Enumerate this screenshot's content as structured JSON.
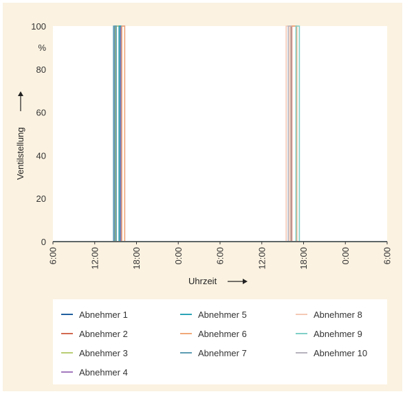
{
  "chart_data": {
    "type": "line",
    "title": "",
    "xlabel": "Uhrzeit",
    "ylabel": "Ventilstellung",
    "yunit": "%",
    "ylim": [
      0,
      100
    ],
    "yticks": [
      0,
      20,
      40,
      60,
      80,
      100
    ],
    "xlim": [
      6,
      54
    ],
    "xticks": [
      6,
      12,
      18,
      24,
      30,
      36,
      42,
      48,
      54
    ],
    "xtick_labels": [
      "6:00",
      "12:00",
      "18:00",
      "0:00",
      "6:00",
      "12:00",
      "18:00",
      "0:00",
      "6:00"
    ],
    "grid": false,
    "legend_position": "bottom",
    "series": [
      {
        "name": "Abnehmer 1",
        "color": "#1f5f9e",
        "x": [
          6,
          14.9,
          14.9,
          15.7,
          15.7,
          54
        ],
        "y": [
          0,
          0,
          100,
          100,
          0,
          0
        ]
      },
      {
        "name": "Abnehmer 2",
        "color": "#d2694f",
        "x": [
          6,
          40.3,
          40.3,
          41.0,
          41.0,
          54
        ],
        "y": [
          0,
          0,
          100,
          100,
          0,
          0
        ]
      },
      {
        "name": "Abnehmer 3",
        "color": "#b9cd73",
        "x": [
          6,
          15.0,
          15.0,
          15.5,
          15.5,
          54
        ],
        "y": [
          0,
          0,
          100,
          100,
          0,
          0
        ]
      },
      {
        "name": "Abnehmer 4",
        "color": "#a378bd",
        "x": [
          6,
          15.8,
          15.8,
          16.3,
          16.3,
          54
        ],
        "y": [
          0,
          0,
          100,
          100,
          0,
          0
        ]
      },
      {
        "name": "Abnehmer 5",
        "color": "#2ba3b6",
        "x": [
          6,
          15.5,
          15.5,
          15.9,
          15.9,
          54
        ],
        "y": [
          0,
          0,
          100,
          100,
          0,
          0
        ]
      },
      {
        "name": "Abnehmer 6",
        "color": "#f0a878",
        "x": [
          6,
          15.9,
          15.9,
          16.3,
          16.3,
          40.1,
          40.1,
          41.0,
          41.0,
          54
        ],
        "y": [
          0,
          0,
          100,
          100,
          0,
          0,
          100,
          100,
          0,
          0
        ]
      },
      {
        "name": "Abnehmer 7",
        "color": "#5b9bb3",
        "x": [
          6,
          14.7,
          14.7,
          15.1,
          15.1,
          54
        ],
        "y": [
          0,
          0,
          100,
          100,
          0,
          0
        ]
      },
      {
        "name": "Abnehmer 8",
        "color": "#f4c9b5",
        "x": [
          6,
          39.5,
          39.5,
          40.0,
          40.0,
          54
        ],
        "y": [
          0,
          0,
          100,
          100,
          0,
          0
        ]
      },
      {
        "name": "Abnehmer 9",
        "color": "#7fcfc7",
        "x": [
          6,
          40.9,
          40.9,
          41.4,
          41.4,
          54
        ],
        "y": [
          0,
          0,
          100,
          100,
          0,
          0
        ]
      },
      {
        "name": "Abnehmer 10",
        "color": "#b6b3bd",
        "x": [
          6,
          39.8,
          39.8,
          40.2,
          40.2,
          54
        ],
        "y": [
          0,
          0,
          100,
          100,
          0,
          0
        ]
      }
    ]
  }
}
